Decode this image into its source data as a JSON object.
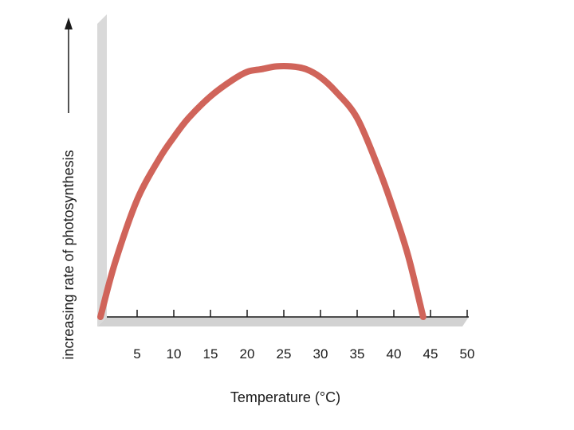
{
  "chart_data": {
    "type": "line",
    "title": "",
    "xlabel": "Temperature (°C)",
    "ylabel": "increasing rate of photosynthesis",
    "xlim": [
      0,
      50
    ],
    "ylim": [
      0,
      1
    ],
    "x_ticks": [
      5,
      10,
      15,
      20,
      25,
      30,
      35,
      40,
      45,
      50
    ],
    "y_ticks_shown": false,
    "grid": false,
    "legend": "none",
    "series": [
      {
        "color": "#d0645a",
        "x": [
          0,
          2,
          5,
          8,
          10,
          12,
          15,
          18,
          20,
          22,
          24,
          26,
          28,
          30,
          32,
          35,
          38,
          40,
          42,
          44
        ],
        "y": [
          0.0,
          0.2,
          0.43,
          0.58,
          0.66,
          0.73,
          0.81,
          0.87,
          0.9,
          0.91,
          0.92,
          0.92,
          0.91,
          0.88,
          0.83,
          0.73,
          0.54,
          0.39,
          0.22,
          0.0
        ]
      }
    ]
  }
}
